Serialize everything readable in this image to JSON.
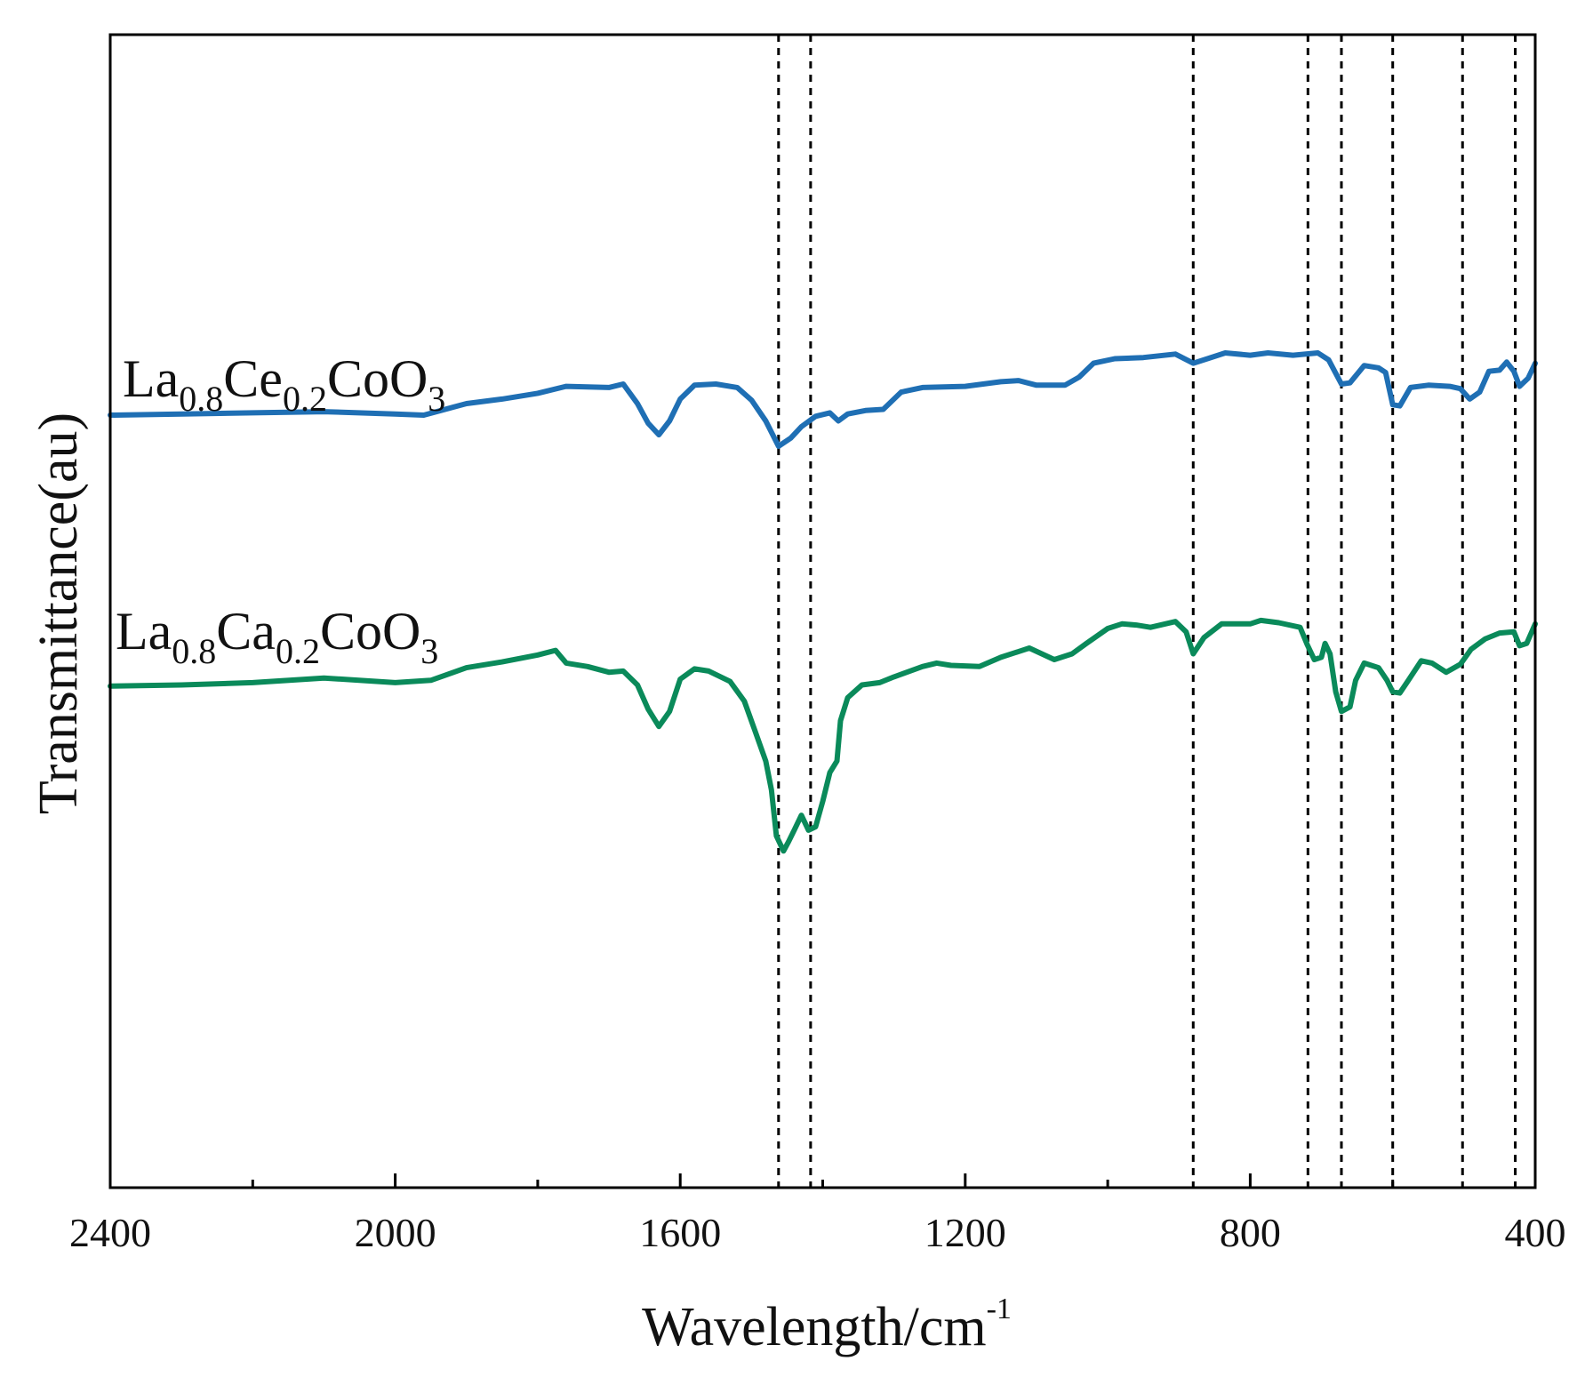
{
  "chart_data": {
    "type": "line",
    "title": "",
    "xlabel": "Wavelength/cm",
    "xlabel_sup": "-1",
    "ylabel": "Transmittance(au)",
    "xlim": [
      2400,
      400
    ],
    "ylim": [
      0,
      100
    ],
    "x_ticks": [
      2400,
      2000,
      1600,
      1200,
      800,
      400
    ],
    "x_tick_labels": [
      "2400",
      "2000",
      "1600",
      "1200",
      "800",
      "400"
    ],
    "x_minor_ticks": [
      2200,
      1800,
      1400,
      1000,
      600
    ],
    "y_ticks_shown": false,
    "grid": false,
    "colors": {
      "series1": "#1f6fb4",
      "series2": "#0a8a5a",
      "ref_lines": "#000000",
      "axis": "#000000"
    },
    "reference_lines_x": [
      1462,
      1417,
      880,
      719,
      672,
      600,
      502,
      428
    ],
    "series": [
      {
        "name": "La0.8Ce0.2CoO3",
        "label_parts": [
          {
            "t": "La",
            "sub": false
          },
          {
            "t": "0.8",
            "sub": true
          },
          {
            "t": "Ce",
            "sub": false
          },
          {
            "t": "0.2",
            "sub": true
          },
          {
            "t": "CoO",
            "sub": false
          },
          {
            "t": "3",
            "sub": true
          }
        ],
        "color": "#1f6fb4",
        "points": [
          [
            2400,
            67.0
          ],
          [
            2300,
            67.1
          ],
          [
            2200,
            67.2
          ],
          [
            2100,
            67.3
          ],
          [
            2000,
            67.1
          ],
          [
            1960,
            67.0
          ],
          [
            1900,
            68.0
          ],
          [
            1850,
            68.4
          ],
          [
            1800,
            68.9
          ],
          [
            1760,
            69.5
          ],
          [
            1700,
            69.4
          ],
          [
            1680,
            69.7
          ],
          [
            1660,
            68.0
          ],
          [
            1645,
            66.3
          ],
          [
            1630,
            65.3
          ],
          [
            1615,
            66.5
          ],
          [
            1600,
            68.4
          ],
          [
            1580,
            69.6
          ],
          [
            1550,
            69.7
          ],
          [
            1520,
            69.4
          ],
          [
            1500,
            68.3
          ],
          [
            1480,
            66.5
          ],
          [
            1462,
            64.3
          ],
          [
            1445,
            65.0
          ],
          [
            1430,
            66.0
          ],
          [
            1410,
            66.9
          ],
          [
            1390,
            67.2
          ],
          [
            1378,
            66.5
          ],
          [
            1365,
            67.1
          ],
          [
            1340,
            67.4
          ],
          [
            1315,
            67.5
          ],
          [
            1290,
            69.0
          ],
          [
            1260,
            69.4
          ],
          [
            1200,
            69.5
          ],
          [
            1150,
            69.9
          ],
          [
            1125,
            70.0
          ],
          [
            1100,
            69.6
          ],
          [
            1060,
            69.6
          ],
          [
            1040,
            70.3
          ],
          [
            1020,
            71.5
          ],
          [
            990,
            71.9
          ],
          [
            950,
            72.0
          ],
          [
            905,
            72.3
          ],
          [
            880,
            71.5
          ],
          [
            860,
            71.9
          ],
          [
            835,
            72.4
          ],
          [
            800,
            72.2
          ],
          [
            775,
            72.4
          ],
          [
            740,
            72.2
          ],
          [
            705,
            72.4
          ],
          [
            690,
            71.8
          ],
          [
            672,
            69.7
          ],
          [
            660,
            69.8
          ],
          [
            640,
            71.3
          ],
          [
            620,
            71.1
          ],
          [
            610,
            70.7
          ],
          [
            600,
            67.9
          ],
          [
            590,
            67.8
          ],
          [
            575,
            69.4
          ],
          [
            550,
            69.6
          ],
          [
            520,
            69.5
          ],
          [
            505,
            69.3
          ],
          [
            492,
            68.4
          ],
          [
            478,
            69.0
          ],
          [
            465,
            70.8
          ],
          [
            450,
            70.9
          ],
          [
            440,
            71.6
          ],
          [
            430,
            70.8
          ],
          [
            422,
            69.5
          ],
          [
            410,
            70.2
          ],
          [
            400,
            71.5
          ]
        ]
      },
      {
        "name": "La0.8Ca0.2CoO3",
        "label_parts": [
          {
            "t": "La",
            "sub": false
          },
          {
            "t": "0.8",
            "sub": true
          },
          {
            "t": "Ca",
            "sub": false
          },
          {
            "t": "0.2",
            "sub": true
          },
          {
            "t": "CoO",
            "sub": false
          },
          {
            "t": "3",
            "sub": true
          }
        ],
        "color": "#0a8a5a",
        "points": [
          [
            2400,
            43.5
          ],
          [
            2300,
            43.6
          ],
          [
            2200,
            43.8
          ],
          [
            2100,
            44.2
          ],
          [
            2000,
            43.8
          ],
          [
            1950,
            44.0
          ],
          [
            1900,
            45.1
          ],
          [
            1850,
            45.6
          ],
          [
            1800,
            46.2
          ],
          [
            1775,
            46.6
          ],
          [
            1760,
            45.5
          ],
          [
            1730,
            45.2
          ],
          [
            1700,
            44.7
          ],
          [
            1680,
            44.8
          ],
          [
            1660,
            43.6
          ],
          [
            1645,
            41.5
          ],
          [
            1630,
            40.0
          ],
          [
            1615,
            41.3
          ],
          [
            1600,
            44.1
          ],
          [
            1580,
            45.0
          ],
          [
            1560,
            44.8
          ],
          [
            1530,
            43.9
          ],
          [
            1510,
            42.2
          ],
          [
            1495,
            39.6
          ],
          [
            1480,
            37.0
          ],
          [
            1472,
            34.5
          ],
          [
            1465,
            30.5
          ],
          [
            1455,
            29.2
          ],
          [
            1448,
            30.0
          ],
          [
            1440,
            31.0
          ],
          [
            1430,
            32.3
          ],
          [
            1420,
            31.0
          ],
          [
            1410,
            31.3
          ],
          [
            1400,
            33.5
          ],
          [
            1390,
            36.0
          ],
          [
            1380,
            37.0
          ],
          [
            1375,
            40.5
          ],
          [
            1365,
            42.5
          ],
          [
            1345,
            43.6
          ],
          [
            1320,
            43.8
          ],
          [
            1300,
            44.3
          ],
          [
            1260,
            45.2
          ],
          [
            1240,
            45.5
          ],
          [
            1220,
            45.3
          ],
          [
            1180,
            45.2
          ],
          [
            1150,
            46.0
          ],
          [
            1110,
            46.8
          ],
          [
            1075,
            45.8
          ],
          [
            1050,
            46.3
          ],
          [
            1030,
            47.2
          ],
          [
            1000,
            48.5
          ],
          [
            980,
            48.9
          ],
          [
            960,
            48.8
          ],
          [
            940,
            48.6
          ],
          [
            905,
            49.1
          ],
          [
            890,
            48.2
          ],
          [
            880,
            46.3
          ],
          [
            865,
            47.7
          ],
          [
            840,
            48.9
          ],
          [
            800,
            48.9
          ],
          [
            785,
            49.2
          ],
          [
            760,
            49.0
          ],
          [
            730,
            48.6
          ],
          [
            720,
            47.1
          ],
          [
            710,
            45.8
          ],
          [
            700,
            46.0
          ],
          [
            695,
            47.2
          ],
          [
            688,
            46.3
          ],
          [
            680,
            43.0
          ],
          [
            672,
            41.3
          ],
          [
            660,
            41.7
          ],
          [
            652,
            44.0
          ],
          [
            640,
            45.5
          ],
          [
            620,
            45.1
          ],
          [
            608,
            44.0
          ],
          [
            600,
            43.0
          ],
          [
            590,
            42.9
          ],
          [
            578,
            44.0
          ],
          [
            560,
            45.7
          ],
          [
            545,
            45.5
          ],
          [
            525,
            44.7
          ],
          [
            505,
            45.4
          ],
          [
            490,
            46.7
          ],
          [
            470,
            47.6
          ],
          [
            450,
            48.1
          ],
          [
            430,
            48.2
          ],
          [
            422,
            47.0
          ],
          [
            412,
            47.2
          ],
          [
            400,
            48.9
          ]
        ]
      }
    ]
  }
}
